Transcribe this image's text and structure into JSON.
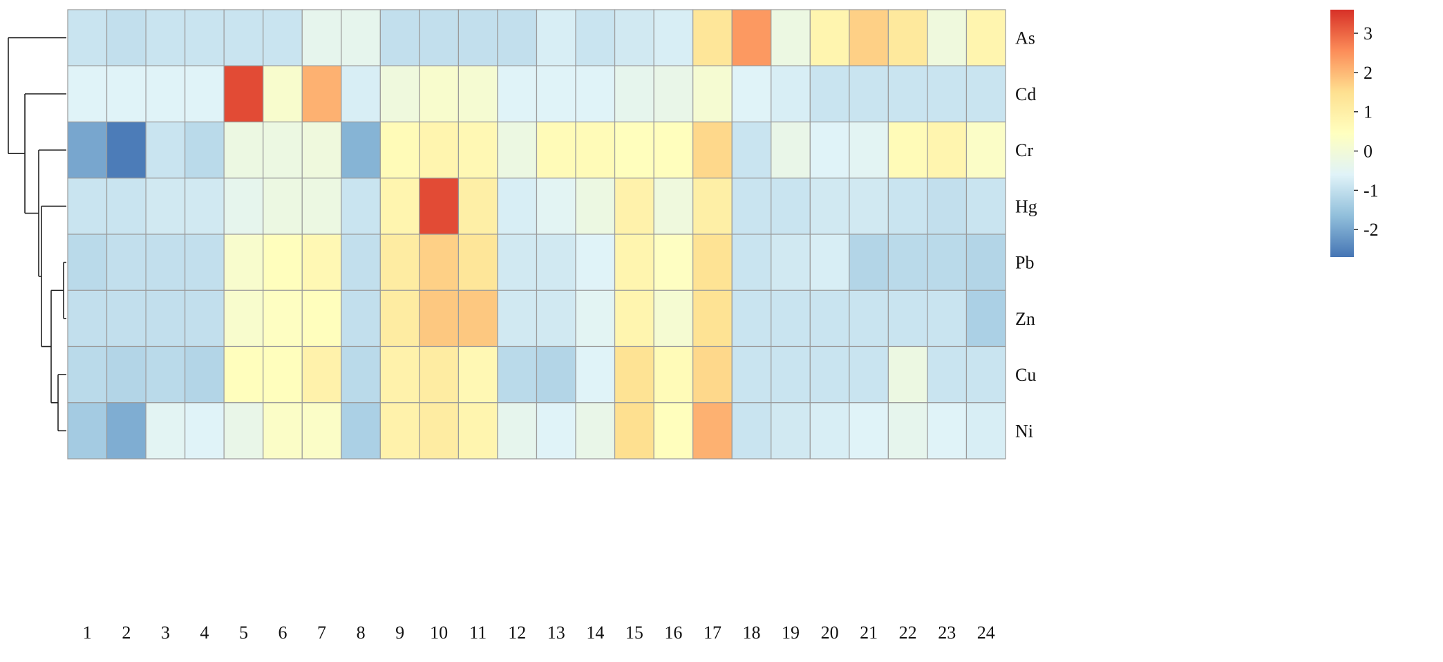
{
  "chart_data": {
    "type": "heatmap",
    "title": "",
    "xlabel": "",
    "ylabel": "",
    "columns": [
      "1",
      "2",
      "3",
      "4",
      "5",
      "6",
      "7",
      "8",
      "9",
      "10",
      "11",
      "12",
      "13",
      "14",
      "15",
      "16",
      "17",
      "18",
      "19",
      "20",
      "21",
      "22",
      "23",
      "24"
    ],
    "rows": [
      "As",
      "Cd",
      "Cr",
      "Hg",
      "Pb",
      "Zn",
      "Cu",
      "Ni"
    ],
    "values": [
      [
        -0.9,
        -1.0,
        -0.9,
        -0.9,
        -0.9,
        -0.9,
        -0.4,
        -0.4,
        -1.0,
        -1.0,
        -1.0,
        -1.0,
        -0.7,
        -0.9,
        -0.8,
        -0.7,
        1.3,
        2.4,
        -0.2,
        0.8,
        1.7,
        1.2,
        -0.1,
        0.8
      ],
      [
        -0.6,
        -0.6,
        -0.6,
        -0.6,
        3.3,
        0.2,
        2.1,
        -0.7,
        -0.1,
        0.2,
        0.1,
        -0.6,
        -0.6,
        -0.6,
        -0.4,
        -0.3,
        0.1,
        -0.6,
        -0.7,
        -0.9,
        -0.9,
        -0.9,
        -0.9,
        -0.9
      ],
      [
        -2.0,
        -2.6,
        -0.9,
        -1.1,
        -0.2,
        -0.2,
        -0.1,
        -1.8,
        0.6,
        0.8,
        0.7,
        -0.2,
        0.6,
        0.6,
        0.5,
        0.5,
        1.6,
        -0.9,
        -0.3,
        -0.6,
        -0.5,
        0.6,
        0.8,
        0.3
      ],
      [
        -0.9,
        -0.9,
        -0.8,
        -0.8,
        -0.4,
        -0.2,
        -0.2,
        -0.9,
        0.8,
        3.3,
        1.0,
        -0.7,
        -0.5,
        -0.2,
        0.9,
        -0.1,
        1.0,
        -0.9,
        -0.9,
        -0.8,
        -0.8,
        -0.9,
        -1.0,
        -0.9
      ],
      [
        -1.1,
        -1.0,
        -1.0,
        -1.0,
        0.2,
        0.5,
        0.7,
        -1.0,
        1.1,
        1.7,
        1.3,
        -0.8,
        -0.8,
        -0.6,
        0.8,
        0.4,
        1.4,
        -0.9,
        -0.8,
        -0.7,
        -1.2,
        -1.1,
        -1.1,
        -1.2
      ],
      [
        -1.0,
        -1.0,
        -1.0,
        -1.0,
        0.2,
        0.4,
        0.5,
        -1.0,
        1.1,
        1.8,
        1.8,
        -0.8,
        -0.8,
        -0.5,
        0.8,
        0.1,
        1.4,
        -0.9,
        -0.9,
        -0.9,
        -0.9,
        -0.9,
        -0.9,
        -1.3
      ],
      [
        -1.1,
        -1.2,
        -1.1,
        -1.2,
        0.5,
        0.5,
        0.9,
        -1.1,
        0.9,
        1.1,
        0.7,
        -1.1,
        -1.2,
        -0.6,
        1.4,
        0.6,
        1.6,
        -0.9,
        -0.9,
        -0.9,
        -0.9,
        -0.2,
        -0.9,
        -0.9
      ],
      [
        -1.4,
        -1.9,
        -0.5,
        -0.6,
        -0.3,
        0.3,
        0.3,
        -1.3,
        0.9,
        1.1,
        0.8,
        -0.4,
        -0.6,
        -0.3,
        1.5,
        0.5,
        2.1,
        -0.9,
        -0.8,
        -0.7,
        -0.6,
        -0.4,
        -0.6,
        -0.7
      ]
    ],
    "colorbar": {
      "ticks": [
        3,
        2,
        1,
        0,
        -1,
        -2
      ],
      "tick_labels": [
        "3",
        "2",
        "1",
        "0",
        "-1",
        "-2"
      ],
      "range": [
        -2.7,
        3.6
      ],
      "colors": [
        "#4575b4",
        "#91bfdb",
        "#e0f3f8",
        "#ffffbf",
        "#fee090",
        "#fc8d59",
        "#d73027"
      ]
    },
    "dendrogram": "rows",
    "legend_position": "top-right"
  }
}
